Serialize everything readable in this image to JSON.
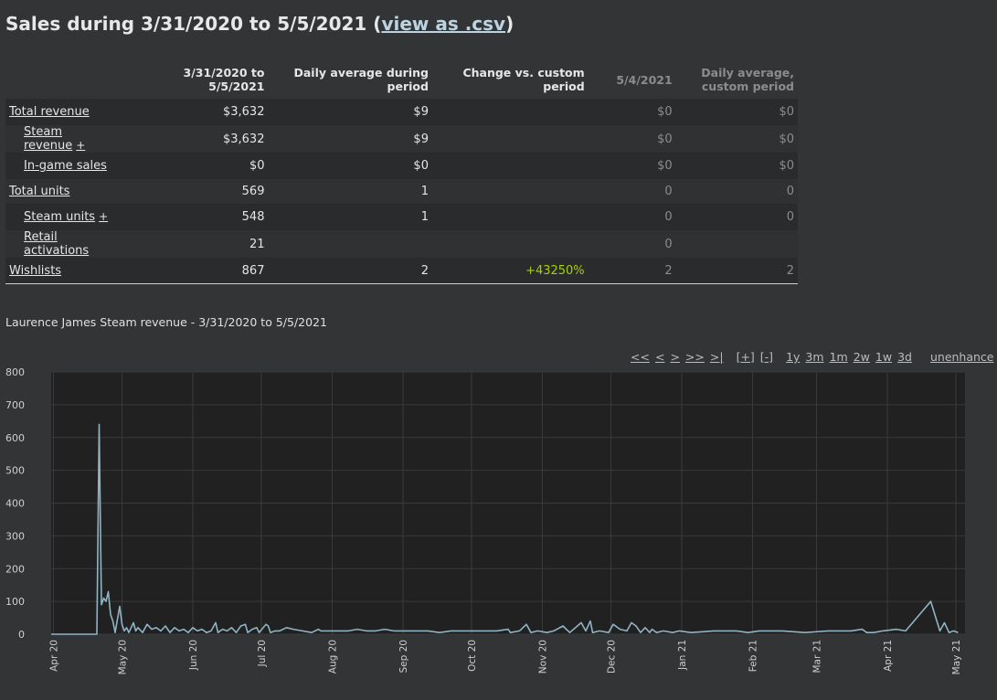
{
  "header": {
    "title_prefix": "Sales during 3/31/2020 to 5/5/2021 (",
    "csv_link": "view as .csv",
    "title_suffix": ")"
  },
  "table": {
    "headers": {
      "period": "3/31/2020 to 5/5/2021",
      "daily_avg": "Daily average during period",
      "change": "Change vs. custom period",
      "custom_date": "5/4/2021",
      "custom_avg_line1": "Daily average,",
      "custom_avg_line2": "custom period"
    },
    "rows": [
      {
        "label": "Total revenue",
        "sub": false,
        "plus": "",
        "period": "$3,632",
        "daily": "$9",
        "change": "",
        "custom": "$0",
        "custom_avg": "$0"
      },
      {
        "label": "Steam revenue",
        "sub": true,
        "plus": "+",
        "period": "$3,632",
        "daily": "$9",
        "change": "",
        "custom": "$0",
        "custom_avg": "$0"
      },
      {
        "label": "In-game sales",
        "sub": true,
        "plus": "",
        "period": "$0",
        "daily": "$0",
        "change": "",
        "custom": "$0",
        "custom_avg": "$0"
      },
      {
        "label": "Total units",
        "sub": false,
        "plus": "",
        "period": "569",
        "daily": "1",
        "change": "",
        "custom": "0",
        "custom_avg": "0"
      },
      {
        "label": "Steam units",
        "sub": true,
        "plus": "+",
        "period": "548",
        "daily": "1",
        "change": "",
        "custom": "0",
        "custom_avg": "0"
      },
      {
        "label": "Retail activations",
        "sub": true,
        "plus": "",
        "period": "21",
        "daily": "",
        "change": "",
        "custom": "0",
        "custom_avg": ""
      },
      {
        "label": "Wishlists",
        "sub": false,
        "plus": "",
        "period": "867",
        "daily": "2",
        "change": "+43250%",
        "custom": "2",
        "custom_avg": "2"
      }
    ]
  },
  "chart_title": "Laurence James Steam revenue - 3/31/2020 to 5/5/2021",
  "controls": {
    "nav": [
      "<<",
      "<",
      ">",
      ">>",
      ">|"
    ],
    "zoom": [
      "[+]",
      "[-]"
    ],
    "ranges": [
      "1y",
      "3m",
      "1m",
      "2w",
      "1w",
      "3d"
    ],
    "unenhance": "unenhance"
  },
  "colors": {
    "line": "#8fb4c3",
    "plot_bg": "#212122",
    "grid": "#3a3a3c",
    "positive": "#a4d007"
  },
  "chart_data": {
    "type": "line",
    "title": "Laurence James Steam revenue - 3/31/2020 to 5/5/2021",
    "xlabel": "",
    "ylabel": "",
    "ylim": [
      0,
      800
    ],
    "yticks": [
      0,
      100,
      200,
      300,
      400,
      500,
      600,
      700,
      800
    ],
    "x_ticks": [
      "Apr 20",
      "May 20",
      "Jun 20",
      "Jul 20",
      "Aug 20",
      "Sep 20",
      "Oct 20",
      "Nov 20",
      "Dec 20",
      "Jan 21",
      "Feb 21",
      "Mar 21",
      "Apr 21",
      "May 21"
    ],
    "x_tick_days": [
      1,
      31,
      62,
      92,
      123,
      154,
      184,
      215,
      245,
      276,
      307,
      335,
      366,
      396
    ],
    "x_range_days": [
      0,
      400
    ],
    "grid": true,
    "series": [
      {
        "values": [
          [
            0,
            0
          ],
          [
            20,
            0
          ],
          [
            21,
            640
          ],
          [
            22,
            90
          ],
          [
            23,
            110
          ],
          [
            24,
            100
          ],
          [
            25,
            130
          ],
          [
            26,
            60
          ],
          [
            27,
            40
          ],
          [
            28,
            5
          ],
          [
            30,
            85
          ],
          [
            31,
            30
          ],
          [
            32,
            10
          ],
          [
            33,
            20
          ],
          [
            34,
            5
          ],
          [
            36,
            35
          ],
          [
            37,
            10
          ],
          [
            38,
            20
          ],
          [
            40,
            5
          ],
          [
            42,
            30
          ],
          [
            44,
            15
          ],
          [
            46,
            20
          ],
          [
            48,
            10
          ],
          [
            50,
            25
          ],
          [
            52,
            5
          ],
          [
            54,
            20
          ],
          [
            56,
            10
          ],
          [
            58,
            15
          ],
          [
            60,
            5
          ],
          [
            62,
            20
          ],
          [
            64,
            10
          ],
          [
            66,
            15
          ],
          [
            68,
            5
          ],
          [
            70,
            10
          ],
          [
            72,
            35
          ],
          [
            73,
            5
          ],
          [
            75,
            15
          ],
          [
            77,
            10
          ],
          [
            79,
            20
          ],
          [
            81,
            5
          ],
          [
            83,
            25
          ],
          [
            85,
            30
          ],
          [
            86,
            5
          ],
          [
            88,
            15
          ],
          [
            90,
            20
          ],
          [
            91,
            5
          ],
          [
            94,
            30
          ],
          [
            95,
            25
          ],
          [
            96,
            5
          ],
          [
            98,
            10
          ],
          [
            100,
            10
          ],
          [
            103,
            20
          ],
          [
            106,
            15
          ],
          [
            110,
            10
          ],
          [
            114,
            5
          ],
          [
            117,
            15
          ],
          [
            118,
            10
          ],
          [
            122,
            10
          ],
          [
            126,
            10
          ],
          [
            130,
            10
          ],
          [
            134,
            15
          ],
          [
            138,
            10
          ],
          [
            142,
            10
          ],
          [
            146,
            15
          ],
          [
            150,
            10
          ],
          [
            155,
            10
          ],
          [
            160,
            10
          ],
          [
            165,
            10
          ],
          [
            170,
            5
          ],
          [
            175,
            10
          ],
          [
            180,
            10
          ],
          [
            185,
            10
          ],
          [
            190,
            10
          ],
          [
            195,
            10
          ],
          [
            200,
            15
          ],
          [
            201,
            5
          ],
          [
            205,
            10
          ],
          [
            208,
            30
          ],
          [
            210,
            5
          ],
          [
            213,
            10
          ],
          [
            217,
            5
          ],
          [
            220,
            10
          ],
          [
            224,
            25
          ],
          [
            227,
            5
          ],
          [
            232,
            35
          ],
          [
            234,
            10
          ],
          [
            236,
            40
          ],
          [
            237,
            5
          ],
          [
            240,
            10
          ],
          [
            244,
            5
          ],
          [
            246,
            30
          ],
          [
            249,
            15
          ],
          [
            252,
            10
          ],
          [
            254,
            35
          ],
          [
            256,
            25
          ],
          [
            258,
            5
          ],
          [
            260,
            20
          ],
          [
            262,
            5
          ],
          [
            263,
            15
          ],
          [
            265,
            5
          ],
          [
            268,
            10
          ],
          [
            272,
            5
          ],
          [
            275,
            10
          ],
          [
            280,
            5
          ],
          [
            290,
            10
          ],
          [
            300,
            10
          ],
          [
            305,
            5
          ],
          [
            310,
            10
          ],
          [
            320,
            10
          ],
          [
            330,
            5
          ],
          [
            340,
            10
          ],
          [
            350,
            10
          ],
          [
            355,
            15
          ],
          [
            357,
            5
          ],
          [
            360,
            5
          ],
          [
            364,
            10
          ],
          [
            370,
            15
          ],
          [
            374,
            10
          ],
          [
            385,
            100
          ],
          [
            389,
            10
          ],
          [
            391,
            35
          ],
          [
            393,
            5
          ],
          [
            395,
            10
          ],
          [
            397,
            5
          ]
        ]
      }
    ]
  }
}
